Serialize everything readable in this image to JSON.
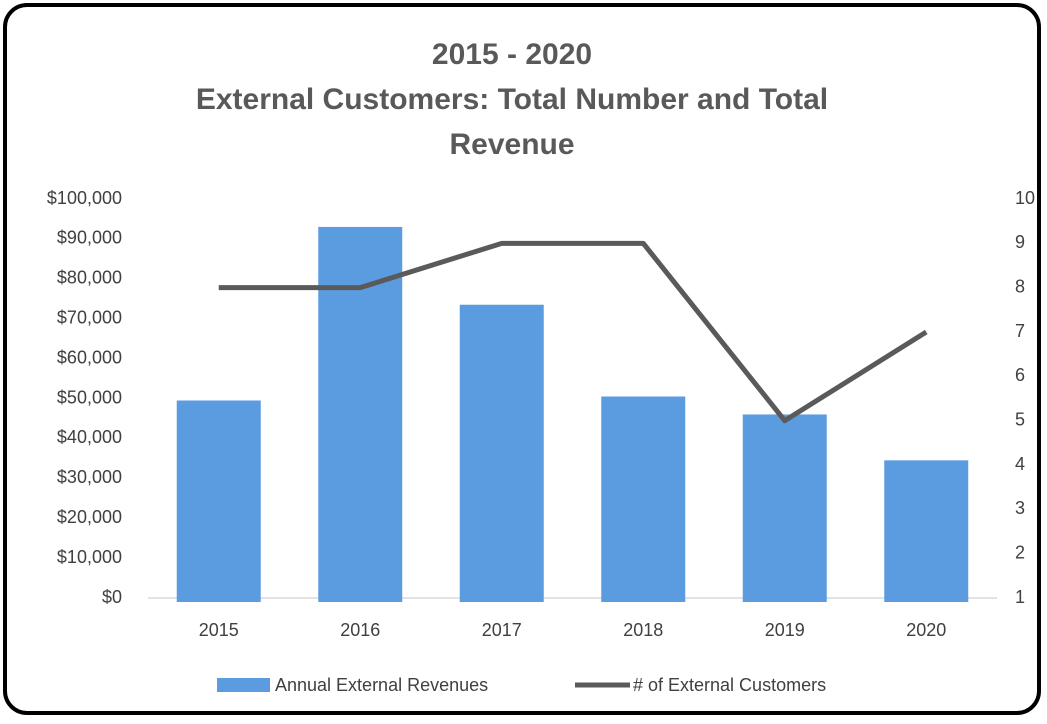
{
  "chart_data": {
    "type": "bar-line",
    "title": [
      "2015 - 2020",
      "External Customers:  Total Number and Total",
      "Revenue"
    ],
    "categories": [
      "2015",
      "2016",
      "2017",
      "2018",
      "2019",
      "2020"
    ],
    "series": [
      {
        "name": "Annual External Revenues",
        "type": "bar",
        "color": "#5b9be0",
        "values": [
          49500,
          93000,
          73500,
          50500,
          46000,
          34500
        ]
      },
      {
        "name": "# of External Customers",
        "type": "line",
        "color": "#5a5a5a",
        "axis": "y2",
        "values": [
          8,
          8,
          9,
          9,
          5,
          7
        ]
      }
    ],
    "ylim": [
      0,
      100000
    ],
    "yticks": [
      {
        "value": 0,
        "label": "$0"
      },
      {
        "value": 10000,
        "label": "$10,000"
      },
      {
        "value": 20000,
        "label": "$20,000"
      },
      {
        "value": 30000,
        "label": "$30,000"
      },
      {
        "value": 40000,
        "label": "$40,000"
      },
      {
        "value": 50000,
        "label": "$50,000"
      },
      {
        "value": 60000,
        "label": "$60,000"
      },
      {
        "value": 70000,
        "label": "$70,000"
      },
      {
        "value": 80000,
        "label": "$80,000"
      },
      {
        "value": 90000,
        "label": "$90,000"
      },
      {
        "value": 100000,
        "label": "$100,000"
      }
    ],
    "y2lim": [
      1,
      10
    ],
    "y2ticks": [
      1,
      2,
      3,
      4,
      5,
      6,
      7,
      8,
      9,
      10
    ],
    "legend": "bottom"
  }
}
